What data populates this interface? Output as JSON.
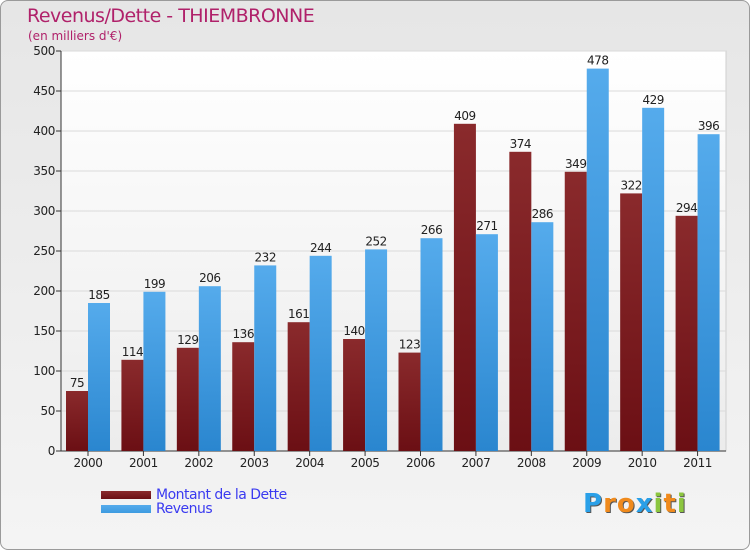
{
  "colors": {
    "dette": "#6b0f14",
    "revenus": "#3d9be0",
    "title": "#b0216a",
    "legend_text": "#3a3af0"
  },
  "chart_data": {
    "type": "bar",
    "title": "Revenus/Dette - THIEMBRONNE",
    "subtitle": "(en milliers d'€)",
    "categories": [
      "2000",
      "2001",
      "2002",
      "2003",
      "2004",
      "2005",
      "2006",
      "2007",
      "2008",
      "2009",
      "2010",
      "2011"
    ],
    "series": [
      {
        "name": "Montant de la Dette",
        "values": [
          75,
          114,
          129,
          136,
          161,
          140,
          123,
          409,
          374,
          349,
          322,
          294
        ]
      },
      {
        "name": "Revenus",
        "values": [
          185,
          199,
          206,
          232,
          244,
          252,
          266,
          271,
          286,
          478,
          429,
          396
        ]
      }
    ],
    "y_ticks": [
      "0",
      "50",
      "100",
      "150",
      "200",
      "250",
      "300",
      "350",
      "400",
      "450",
      "500"
    ],
    "ylim": [
      0,
      500
    ],
    "grid": true,
    "legend_position": "bottom-left"
  },
  "legend": {
    "dette_label": "Montant de la Dette",
    "revenus_label": "Revenus"
  },
  "brand": {
    "letters": [
      "P",
      "r",
      "o",
      "x",
      "i",
      "t",
      "i"
    ],
    "letter_colors": [
      "#2aa0e8",
      "#f08a1c",
      "#f08a1c",
      "#2aa0e8",
      "#8cc63f",
      "#f08a1c",
      "#8cc63f"
    ]
  }
}
